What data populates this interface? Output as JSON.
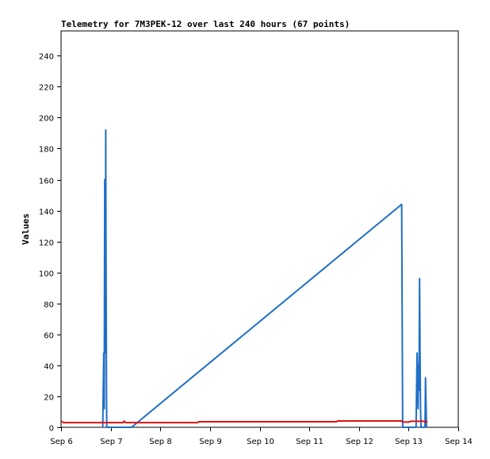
{
  "chart_data": {
    "type": "line",
    "title": "Telemetry for 7M3PEK-12 over last 240 hours (67 points)",
    "xlabel": "",
    "ylabel": "Values",
    "x_ticks": [
      "Sep 6",
      "Sep 7",
      "Sep 8",
      "Sep 9",
      "Sep 10",
      "Sep 11",
      "Sep 12",
      "Sep 13",
      "Sep 14"
    ],
    "x_range": [
      6.0,
      14.0
    ],
    "y_ticks": [
      0,
      20,
      40,
      60,
      80,
      100,
      120,
      140,
      160,
      180,
      200,
      220,
      240
    ],
    "ylim": [
      0,
      256
    ],
    "grid": false,
    "series": [
      {
        "color": "#1f6fc6",
        "points": [
          [
            6.84,
            0
          ],
          [
            6.85,
            24
          ],
          [
            6.86,
            48
          ],
          [
            6.87,
            12
          ],
          [
            6.875,
            96
          ],
          [
            6.88,
            160
          ],
          [
            6.885,
            96
          ],
          [
            6.89,
            144
          ],
          [
            6.895,
            48
          ],
          [
            6.9,
            192
          ],
          [
            6.905,
            120
          ],
          [
            6.91,
            72
          ],
          [
            6.915,
            24
          ],
          [
            6.92,
            0
          ],
          [
            7.42,
            0
          ],
          [
            12.86,
            144
          ],
          [
            12.87,
            72
          ],
          [
            12.88,
            0
          ],
          [
            13.15,
            0
          ],
          [
            13.16,
            24
          ],
          [
            13.17,
            48
          ],
          [
            13.18,
            36
          ],
          [
            13.19,
            12
          ],
          [
            13.2,
            40
          ],
          [
            13.21,
            24
          ],
          [
            13.22,
            96
          ],
          [
            13.23,
            48
          ],
          [
            13.24,
            12
          ],
          [
            13.25,
            0
          ],
          [
            13.33,
            0
          ],
          [
            13.34,
            32
          ],
          [
            13.35,
            16
          ],
          [
            13.36,
            0
          ]
        ]
      },
      {
        "color": "#e01010",
        "points": [
          [
            6.0,
            4
          ],
          [
            6.05,
            3
          ],
          [
            7.25,
            3
          ],
          [
            7.27,
            4
          ],
          [
            7.3,
            3
          ],
          [
            8.75,
            3
          ],
          [
            8.77,
            3.6
          ],
          [
            10.6,
            3.6
          ],
          [
            11.55,
            3.6
          ],
          [
            11.57,
            4.1
          ],
          [
            12.85,
            4.1
          ],
          [
            12.9,
            3.4
          ],
          [
            13.0,
            3.4
          ],
          [
            13.05,
            3.9
          ],
          [
            13.3,
            3.9
          ],
          [
            13.35,
            3.2
          ],
          [
            13.38,
            3.9
          ]
        ]
      }
    ]
  }
}
